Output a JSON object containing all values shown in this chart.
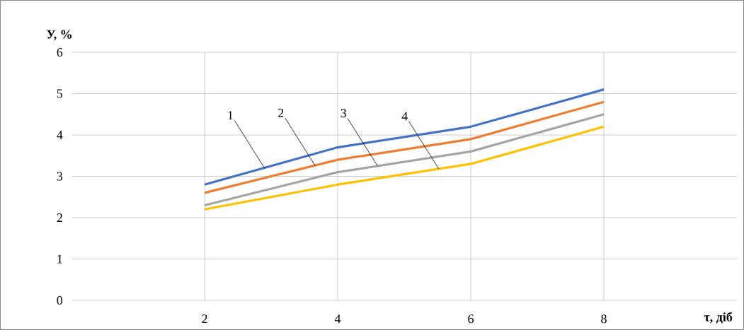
{
  "chart_data": {
    "type": "line",
    "xlabel": "τ, діб",
    "ylabel": "У, %",
    "x": [
      2,
      4,
      6,
      8
    ],
    "series": [
      {
        "color": "#4472c4",
        "values": [
          2.8,
          3.7,
          4.2,
          5.1
        ]
      },
      {
        "color": "#ed7d31",
        "values": [
          2.6,
          3.4,
          3.9,
          4.8
        ]
      },
      {
        "color": "#a5a5a5",
        "values": [
          2.3,
          3.1,
          3.6,
          4.5
        ]
      },
      {
        "color": "#ffc000",
        "values": [
          2.2,
          2.8,
          3.3,
          4.2
        ]
      }
    ],
    "xlim": [
      0,
      10
    ],
    "xticks": [
      2,
      4,
      6,
      8
    ],
    "ylim": [
      0,
      6
    ],
    "yticks": [
      0,
      1,
      2,
      3,
      4,
      5,
      6
    ],
    "grid": true,
    "marker": "none",
    "line_style": "solid",
    "annotations": [
      {
        "text": "1",
        "x": 2.9,
        "y": 3.2
      },
      {
        "text": "2",
        "x": 3.66,
        "y": 3.26
      },
      {
        "text": "3",
        "x": 4.6,
        "y": 3.25
      },
      {
        "text": "4",
        "x": 5.52,
        "y": 3.18
      }
    ]
  }
}
